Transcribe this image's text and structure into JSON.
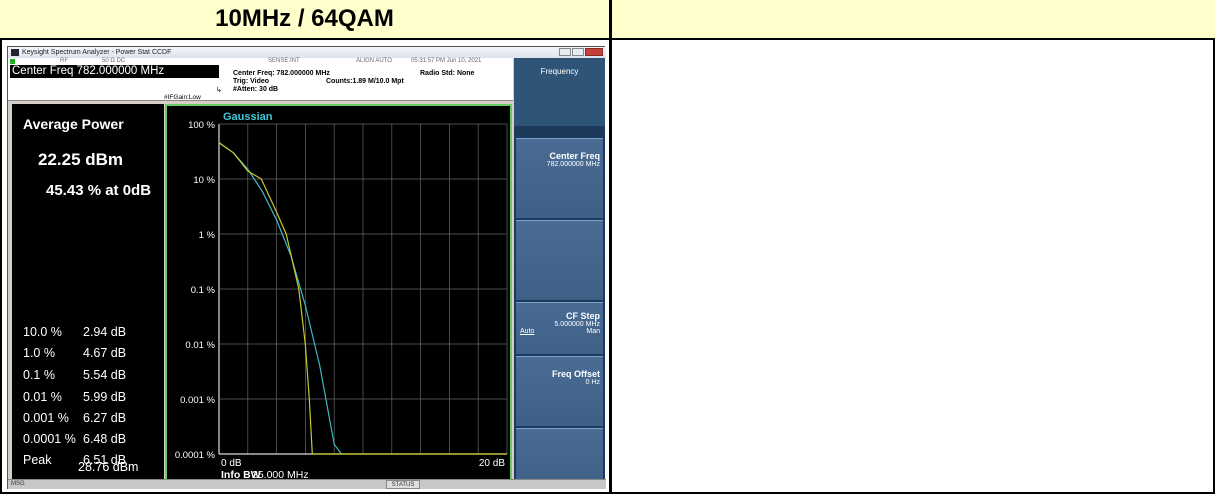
{
  "headers": {
    "left_title": "10MHz / 64QAM",
    "right_title": ""
  },
  "window": {
    "title": "Keysight Spectrum Analyzer - Power Stat CCDF",
    "tiny_rf": "RF",
    "tiny_ohm": "50 Ω  DC",
    "tiny_sense": "SENSE:INT",
    "tiny_align": "ALIGN AUTO",
    "tiny_time": "05:31:57 PM Jun 10, 2021"
  },
  "status": {
    "center_freq_box": "Center Freq 782.000000 MHz",
    "center_freq_line": "Center Freq: 782.000000 MHz",
    "trig": "Trig: Video",
    "counts": "Counts:1.89 M/10.0 Mpt",
    "atten": "#Atten: 30 dB",
    "radio_std": "Radio Std: None",
    "ifgain": "#IFGain:Low"
  },
  "metrics": {
    "title": "Average Power",
    "avg_dbm": "22.25 dBm",
    "pct_at_0db": "45.43 % at 0dB",
    "stats": [
      {
        "label": "10.0 %",
        "value": "2.94 dB"
      },
      {
        "label": "1.0 %",
        "value": "4.67 dB"
      },
      {
        "label": "0.1 %",
        "value": "5.54 dB"
      },
      {
        "label": "0.01 %",
        "value": "5.99 dB"
      },
      {
        "label": "0.001 %",
        "value": "6.27 dB"
      },
      {
        "label": "0.0001 %",
        "value": "6.48 dB"
      },
      {
        "label": "Peak",
        "value": "6.51 dB"
      }
    ],
    "peak_dbm": "28.76 dBm"
  },
  "plot": {
    "legend": "Gaussian",
    "y_ticks": [
      "100 %",
      "10 %",
      "1 %",
      "0.1 %",
      "0.01 %",
      "0.001 %",
      "0.0001 %"
    ],
    "x_left": "0 dB",
    "x_right": "20 dB",
    "info_bw_label": "Info BW",
    "info_bw_value": "25.000 MHz"
  },
  "softkeys": {
    "menu_title": "Frequency",
    "center_freq_label": "Center Freq",
    "center_freq_value": "782.000000 MHz",
    "cf_step_label": "CF Step",
    "cf_step_value": "5.000000 MHz",
    "cf_step_auto": "Auto",
    "cf_step_man": "Man",
    "freq_offset_label": "Freq Offset",
    "freq_offset_value": "0 Hz"
  },
  "bottom": {
    "msg": "MSG",
    "status": "STATUS"
  },
  "chart_data": {
    "type": "line",
    "x_unit": "dB",
    "xlim": [
      0,
      20
    ],
    "y_scale": "log",
    "ylim_percent": [
      0.0001,
      100
    ],
    "series": [
      {
        "name": "Gaussian",
        "color": "#3fb8c8",
        "x": [
          0,
          1,
          2,
          3,
          4,
          5,
          6,
          7,
          8,
          8.5
        ],
        "y_percent": [
          46,
          30,
          15,
          6,
          1.8,
          0.4,
          0.05,
          0.004,
          0.00015,
          0.0001
        ]
      },
      {
        "color": "#c8c830",
        "x": [
          0,
          1,
          2,
          2.94,
          4,
          4.67,
          5.54,
          5.99,
          6.27,
          6.48,
          6.51,
          20
        ],
        "y_percent": [
          45.43,
          30,
          14,
          10,
          2.5,
          1.0,
          0.1,
          0.01,
          0.001,
          0.0001,
          0.0001,
          0.0001
        ]
      }
    ]
  }
}
